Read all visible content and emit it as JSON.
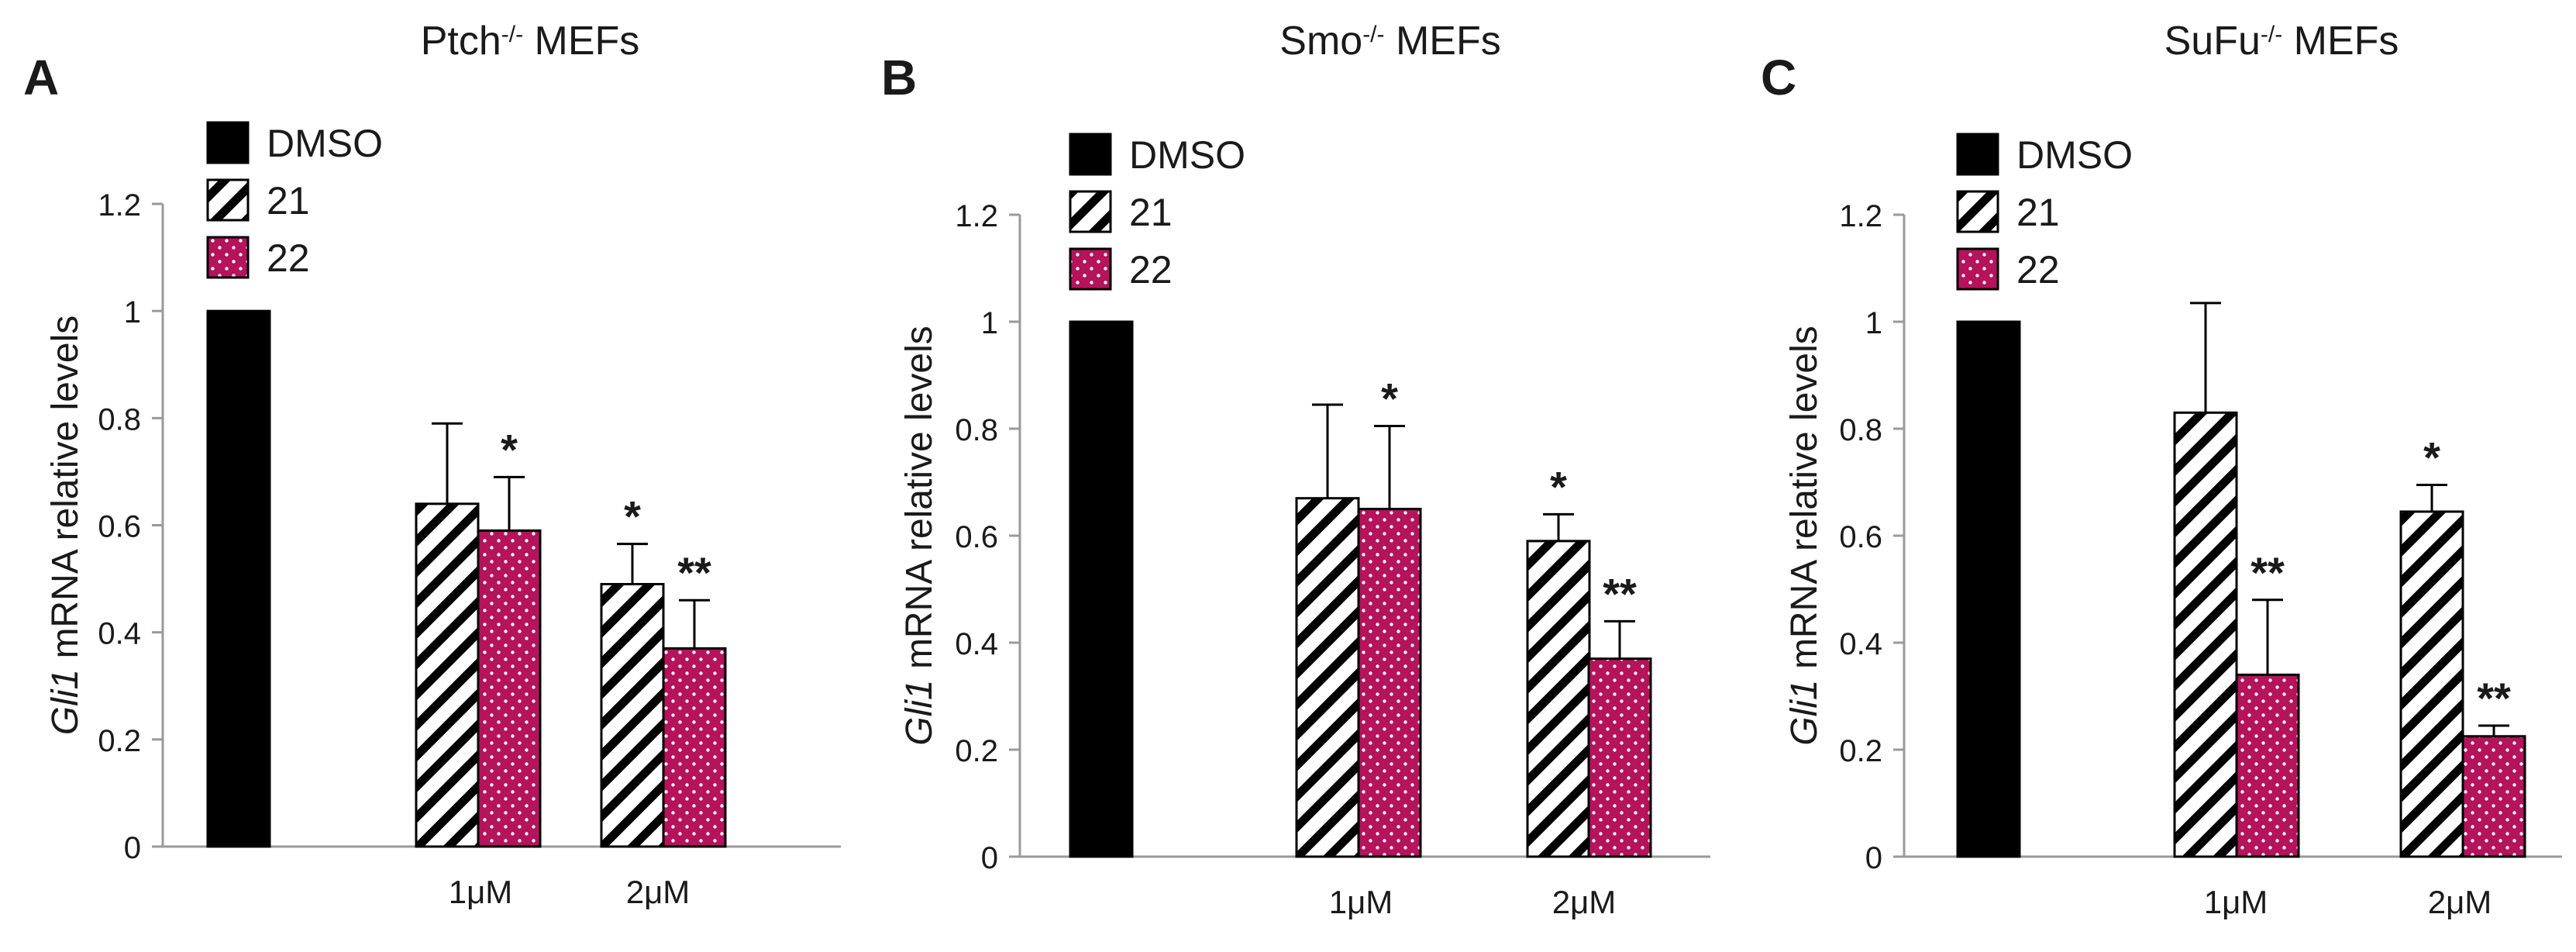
{
  "chart_data": [
    {
      "type": "bar",
      "panel_label": "A",
      "title": "Ptch",
      "title_superscript": "-/-",
      "title_suffix": " MEFs",
      "ylabel_italic": "Gli1",
      "ylabel_rest": " mRNA relative levels",
      "ylim": [
        0,
        1.2
      ],
      "yticks": [
        "0",
        "0.2",
        "0.4",
        "0.6",
        "0.8",
        "1",
        "1.2"
      ],
      "categories": [
        "",
        "1μM",
        "2μM"
      ],
      "legend": [
        "DMSO",
        "21",
        "22"
      ],
      "bars": [
        {
          "series": "DMSO",
          "value": 1.0,
          "error": 0.0,
          "sig": ""
        },
        {
          "series": "21",
          "value": 0.64,
          "error": 0.15,
          "sig": ""
        },
        {
          "series": "22",
          "value": 0.59,
          "error": 0.1,
          "sig": "*"
        },
        {
          "series": "21",
          "value": 0.49,
          "error": 0.075,
          "sig": "*"
        },
        {
          "series": "22",
          "value": 0.37,
          "error": 0.09,
          "sig": "**"
        }
      ]
    },
    {
      "type": "bar",
      "panel_label": "B",
      "title": "Smo",
      "title_superscript": "-/-",
      "title_suffix": " MEFs",
      "ylabel_italic": "Gli1",
      "ylabel_rest": " mRNA relative levels",
      "ylim": [
        0,
        1.2
      ],
      "yticks": [
        "0",
        "0.2",
        "0.4",
        "0.6",
        "0.8",
        "1",
        "1.2"
      ],
      "categories": [
        "",
        "1μM",
        "2μM"
      ],
      "legend": [
        "DMSO",
        "21",
        "22"
      ],
      "bars": [
        {
          "series": "DMSO",
          "value": 1.0,
          "error": 0.0,
          "sig": ""
        },
        {
          "series": "21",
          "value": 0.67,
          "error": 0.175,
          "sig": ""
        },
        {
          "series": "22",
          "value": 0.65,
          "error": 0.155,
          "sig": "*"
        },
        {
          "series": "21",
          "value": 0.59,
          "error": 0.05,
          "sig": "*"
        },
        {
          "series": "22",
          "value": 0.37,
          "error": 0.07,
          "sig": "**"
        }
      ]
    },
    {
      "type": "bar",
      "panel_label": "C",
      "title": "SuFu",
      "title_superscript": "-/-",
      "title_suffix": " MEFs",
      "ylabel_italic": "Gli1",
      "ylabel_rest": " mRNA relative levels",
      "ylim": [
        0,
        1.2
      ],
      "yticks": [
        "0",
        "0.2",
        "0.4",
        "0.6",
        "0.8",
        "1",
        "1.2"
      ],
      "categories": [
        "",
        "1μM",
        "2μM"
      ],
      "legend": [
        "DMSO",
        "21",
        "22"
      ],
      "bars": [
        {
          "series": "DMSO",
          "value": 1.0,
          "error": 0.0,
          "sig": ""
        },
        {
          "series": "21",
          "value": 0.83,
          "error": 0.205,
          "sig": ""
        },
        {
          "series": "22",
          "value": 0.34,
          "error": 0.14,
          "sig": "**"
        },
        {
          "series": "21",
          "value": 0.645,
          "error": 0.05,
          "sig": "*"
        },
        {
          "series": "22",
          "value": 0.225,
          "error": 0.02,
          "sig": "**"
        }
      ]
    }
  ],
  "colors": {
    "dmso": "#000000",
    "hatch": "#000000",
    "dots_fill": "#b5135b",
    "dots": "#ffffff",
    "axis": "#9a9a9a",
    "text": "#1a1a1a"
  }
}
